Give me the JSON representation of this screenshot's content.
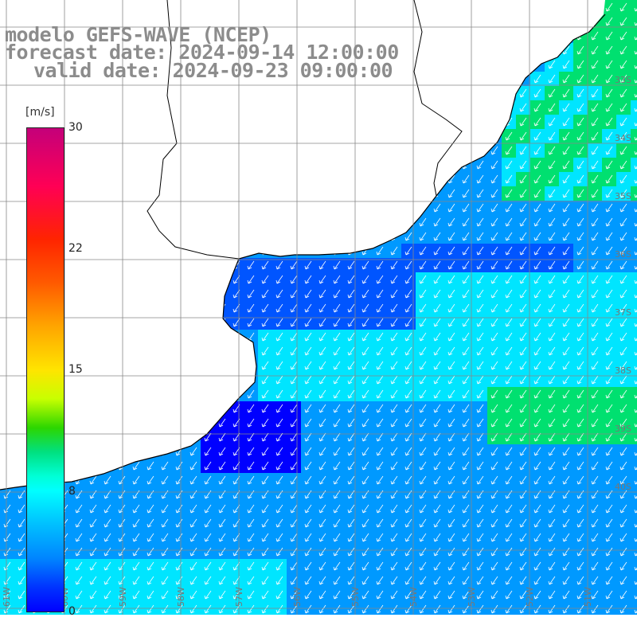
{
  "title": {
    "line1": "modelo GEFS-WAVE (NCEP)",
    "line2": "forecast date: 2024-09-14 12:00:00",
    "line3": "valid date: 2024-09-23 09:00:00"
  },
  "colorbar": {
    "unit": "[m/s]",
    "ticks": [
      "30",
      "22",
      "15",
      "8",
      "0"
    ],
    "tick_values": [
      30,
      22,
      15,
      8,
      0
    ]
  },
  "map": {
    "lat_labels": [
      "33S",
      "34S",
      "35S",
      "36S",
      "37S",
      "38S",
      "39S",
      "40S"
    ],
    "lon_labels": [
      "61W",
      "60W",
      "59W",
      "58W",
      "57W",
      "56W",
      "55W",
      "54W",
      "53W",
      "52W",
      "51W"
    ],
    "colors": {
      "deep_blue": "#0000ff",
      "blue": "#0055ff",
      "light_blue": "#0099ff",
      "cyan": "#00e5ff",
      "green": "#00e070",
      "land": "#ffffff",
      "coast": "#000000",
      "grid": "#888888",
      "arrows": "#ffffff"
    }
  }
}
